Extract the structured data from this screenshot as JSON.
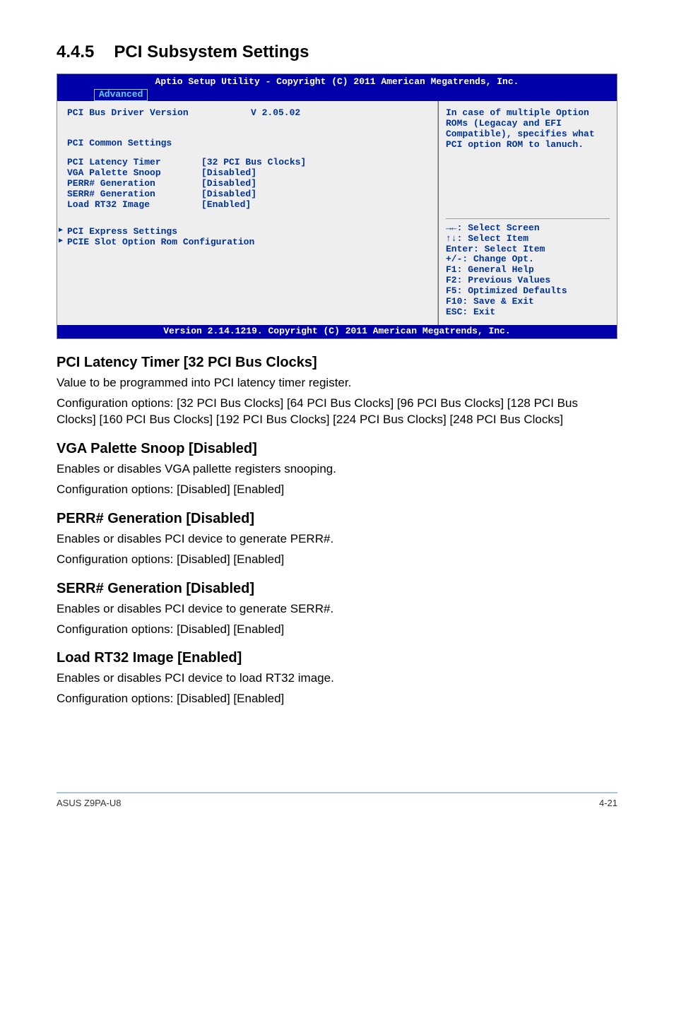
{
  "section": {
    "number": "4.4.5",
    "title": "PCI Subsystem Settings"
  },
  "bios": {
    "header_title": "Aptio Setup Utility - Copyright (C) 2011 American Megatrends, Inc.",
    "tab": "Advanced",
    "left": {
      "driver_label": "PCI Bus Driver Version",
      "driver_value": "V 2.05.02",
      "common_heading": "PCI Common Settings",
      "rows": [
        {
          "label": "PCI Latency Timer",
          "value": "[32 PCI Bus Clocks]"
        },
        {
          "label": "VGA Palette Snoop",
          "value": "[Disabled]"
        },
        {
          "label": "PERR# Generation",
          "value": "[Disabled]"
        },
        {
          "label": "SERR# Generation",
          "value": "[Disabled]"
        },
        {
          "label": "Load RT32 Image",
          "value": "[Enabled]"
        }
      ],
      "submenus": [
        "PCI Express Settings",
        "PCIE Slot Option Rom Configuration"
      ]
    },
    "right": {
      "help": "In case of multiple Option ROMs (Legacay and EFI Compatible), specifies what PCI option ROM to lanuch.",
      "legend": [
        "→←: Select Screen",
        "↑↓:  Select Item",
        "Enter: Select Item",
        "+/-: Change Opt.",
        "F1: General Help",
        "F2: Previous Values",
        "F5: Optimized Defaults",
        "F10: Save & Exit",
        "ESC: Exit"
      ]
    },
    "footer": "Version 2.14.1219. Copyright (C) 2011 American Megatrends, Inc."
  },
  "settings": [
    {
      "title": "PCI Latency Timer [32 PCI Bus Clocks]",
      "paras": [
        "Value to be programmed into PCI latency timer register.",
        "Configuration options: [32 PCI Bus Clocks] [64 PCI Bus Clocks] [96 PCI Bus Clocks] [128 PCI Bus Clocks] [160 PCI Bus Clocks] [192 PCI Bus Clocks] [224 PCI Bus Clocks] [248 PCI Bus Clocks]"
      ]
    },
    {
      "title": "VGA Palette Snoop [Disabled]",
      "paras": [
        "Enables or disables VGA pallette registers snooping.",
        "Configuration options: [Disabled] [Enabled]"
      ]
    },
    {
      "title": "PERR# Generation [Disabled]",
      "paras": [
        "Enables or disables PCI device to generate PERR#.",
        "Configuration options: [Disabled] [Enabled]"
      ]
    },
    {
      "title": "SERR# Generation [Disabled]",
      "paras": [
        "Enables or disables PCI device to generate SERR#.",
        "Configuration options: [Disabled] [Enabled]"
      ]
    },
    {
      "title": "Load RT32 Image [Enabled]",
      "paras": [
        "Enables or disables PCI device to load RT32 image.",
        "Configuration options: [Disabled] [Enabled]"
      ]
    }
  ],
  "footer": {
    "left": "ASUS Z9PA-U8",
    "right": "4-21"
  }
}
